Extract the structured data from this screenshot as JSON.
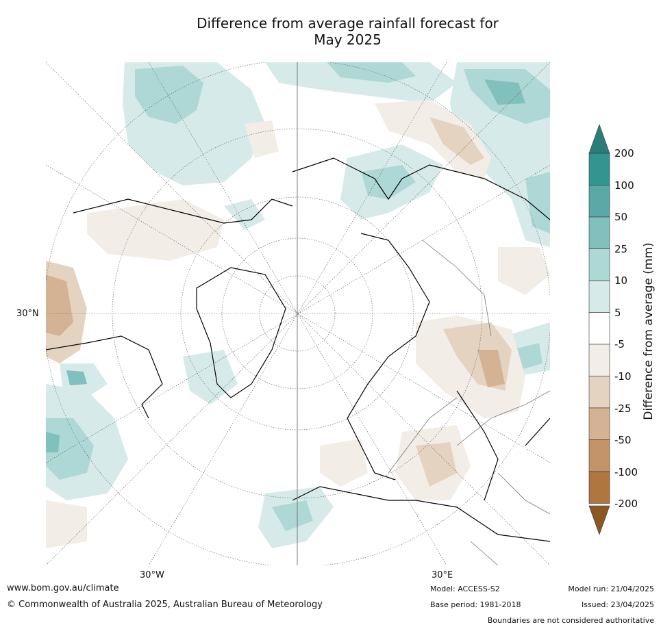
{
  "title_line1": "Difference from average rainfall forecast for",
  "title_line2": "May 2025",
  "map_labels": {
    "lat_30n": "30°N",
    "lon_30w": "30°W",
    "lon_30e": "30°E"
  },
  "colorbar": {
    "title": "Difference from average (mm)",
    "ticks": [
      "200",
      "100",
      "50",
      "25",
      "10",
      "5",
      "-5",
      "-10",
      "-25",
      "-50",
      "-100",
      "-200"
    ],
    "colors": {
      "above_200": "#2a7d7b",
      "100_to_200": "#32958f",
      "50_to_100": "#5aa9a8",
      "25_to_50": "#80c1bd",
      "10_to_25": "#aed8d5",
      "5_to_10": "#d6ebe9",
      "neutral": "#ffffff",
      "m10_to_m5": "#f2ede7",
      "m25_to_m10": "#e5d3c1",
      "m50_to_m25": "#d4b394",
      "m100_to_m50": "#c29468",
      "m200_to_m100": "#b0763f",
      "below_m200": "#8d5721"
    }
  },
  "footer": {
    "website": "www.bom.gov.au/climate",
    "copyright": "© Commonwealth of Australia 2025, Australian Bureau of Meteorology",
    "model": "Model: ACCESS-S2",
    "base_period": "Base period: 1981-2018",
    "model_run": "Model run: 21/04/2025",
    "issued": "Issued: 23/04/2025",
    "disclaimer": "Boundaries are not considered authoritative"
  }
}
